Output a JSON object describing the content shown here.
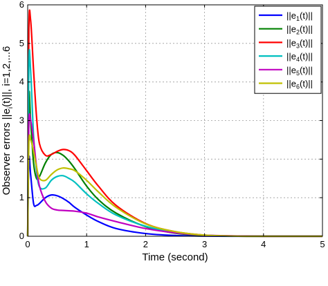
{
  "chart_data": {
    "type": "line",
    "xlabel": "Time (second)",
    "ylabel": "Observer errors ||e_i(t)||, i=1,2,...,6",
    "ylabel_parts": {
      "pre": "Observer errors ||e",
      "sub": "i",
      "post": "(t)||, i=1,2,...6"
    },
    "xlim": [
      0,
      5
    ],
    "ylim": [
      0,
      6
    ],
    "xticks": [
      "0",
      "1",
      "2",
      "3",
      "4",
      "5"
    ],
    "yticks": [
      "0",
      "1",
      "2",
      "3",
      "4",
      "5",
      "6"
    ],
    "grid": true,
    "legend_position": "top-right",
    "series": [
      {
        "name": "||e1(t)||",
        "legend": {
          "pre": "||e",
          "sub": "1",
          "post": "(t)||"
        },
        "color": "#0000ff",
        "x": [
          0,
          0.02,
          0.05,
          0.1,
          0.15,
          0.2,
          0.3,
          0.4,
          0.5,
          0.6,
          0.7,
          0.8,
          1.0,
          1.2,
          1.5,
          2.0,
          2.5,
          3.0,
          3.5,
          4.0,
          5.0
        ],
        "y": [
          0,
          2.0,
          1.6,
          0.85,
          0.8,
          0.85,
          1.0,
          1.07,
          1.05,
          0.98,
          0.88,
          0.75,
          0.55,
          0.38,
          0.2,
          0.07,
          0.02,
          0.005,
          0,
          0,
          0
        ]
      },
      {
        "name": "||e2(t)||",
        "legend": {
          "pre": "||e",
          "sub": "2",
          "post": "(t)||"
        },
        "color": "#008000",
        "x": [
          0,
          0.02,
          0.05,
          0.1,
          0.15,
          0.2,
          0.3,
          0.4,
          0.5,
          0.6,
          0.7,
          0.8,
          1.0,
          1.2,
          1.5,
          2.0,
          2.5,
          3.0,
          3.5,
          4.0,
          5.0
        ],
        "y": [
          0,
          3.6,
          3.0,
          1.9,
          1.5,
          1.55,
          1.9,
          2.12,
          2.17,
          2.1,
          1.95,
          1.75,
          1.3,
          0.95,
          0.6,
          0.25,
          0.08,
          0.02,
          0.005,
          0,
          0
        ]
      },
      {
        "name": "||e3(t)||",
        "legend": {
          "pre": "||e",
          "sub": "3",
          "post": "(t)||"
        },
        "color": "#ff0000",
        "x": [
          0,
          0.02,
          0.05,
          0.1,
          0.15,
          0.2,
          0.3,
          0.4,
          0.5,
          0.6,
          0.7,
          0.8,
          1.0,
          1.2,
          1.5,
          2.0,
          2.5,
          3.0,
          3.5,
          4.0,
          5.0
        ],
        "y": [
          0,
          5.3,
          5.6,
          4.3,
          3.1,
          2.4,
          2.1,
          2.12,
          2.2,
          2.25,
          2.22,
          2.1,
          1.7,
          1.3,
          0.8,
          0.33,
          0.12,
          0.03,
          0.005,
          0,
          0
        ]
      },
      {
        "name": "||e4(t)||",
        "legend": {
          "pre": "||e",
          "sub": "4",
          "post": "(t)||"
        },
        "color": "#00c0c0",
        "x": [
          0,
          0.02,
          0.05,
          0.1,
          0.15,
          0.2,
          0.3,
          0.4,
          0.5,
          0.6,
          0.7,
          0.8,
          1.0,
          1.2,
          1.5,
          2.0,
          2.5,
          3.0,
          3.5,
          4.0,
          5.0
        ],
        "y": [
          0,
          4.5,
          4.3,
          2.6,
          1.7,
          1.28,
          1.25,
          1.45,
          1.55,
          1.57,
          1.5,
          1.4,
          1.1,
          0.85,
          0.55,
          0.26,
          0.1,
          0.03,
          0.005,
          0,
          0
        ]
      },
      {
        "name": "||e5(t)||",
        "legend": {
          "pre": "||e",
          "sub": "5",
          "post": "(t)||"
        },
        "color": "#c000c0",
        "x": [
          0,
          0.02,
          0.05,
          0.1,
          0.15,
          0.2,
          0.3,
          0.4,
          0.5,
          0.6,
          0.7,
          0.8,
          1.0,
          1.2,
          1.5,
          2.0,
          2.5,
          3.0,
          3.5,
          4.0,
          5.0
        ],
        "y": [
          0,
          2.9,
          3.0,
          2.5,
          1.8,
          1.3,
          0.9,
          0.73,
          0.68,
          0.67,
          0.66,
          0.65,
          0.6,
          0.5,
          0.38,
          0.2,
          0.09,
          0.03,
          0.01,
          0,
          0
        ]
      },
      {
        "name": "||e6(t)||",
        "legend": {
          "pre": "||e",
          "sub": "6",
          "post": "(t)||"
        },
        "color": "#c0c000",
        "x": [
          0,
          0.02,
          0.05,
          0.1,
          0.15,
          0.2,
          0.3,
          0.4,
          0.5,
          0.6,
          0.7,
          0.8,
          1.0,
          1.2,
          1.5,
          2.0,
          2.5,
          3.0,
          3.5,
          4.0,
          5.0
        ],
        "y": [
          0,
          2.4,
          2.5,
          2.2,
          1.8,
          1.5,
          1.45,
          1.6,
          1.72,
          1.77,
          1.75,
          1.7,
          1.45,
          1.15,
          0.75,
          0.32,
          0.12,
          0.03,
          0.005,
          0,
          0
        ]
      }
    ]
  }
}
